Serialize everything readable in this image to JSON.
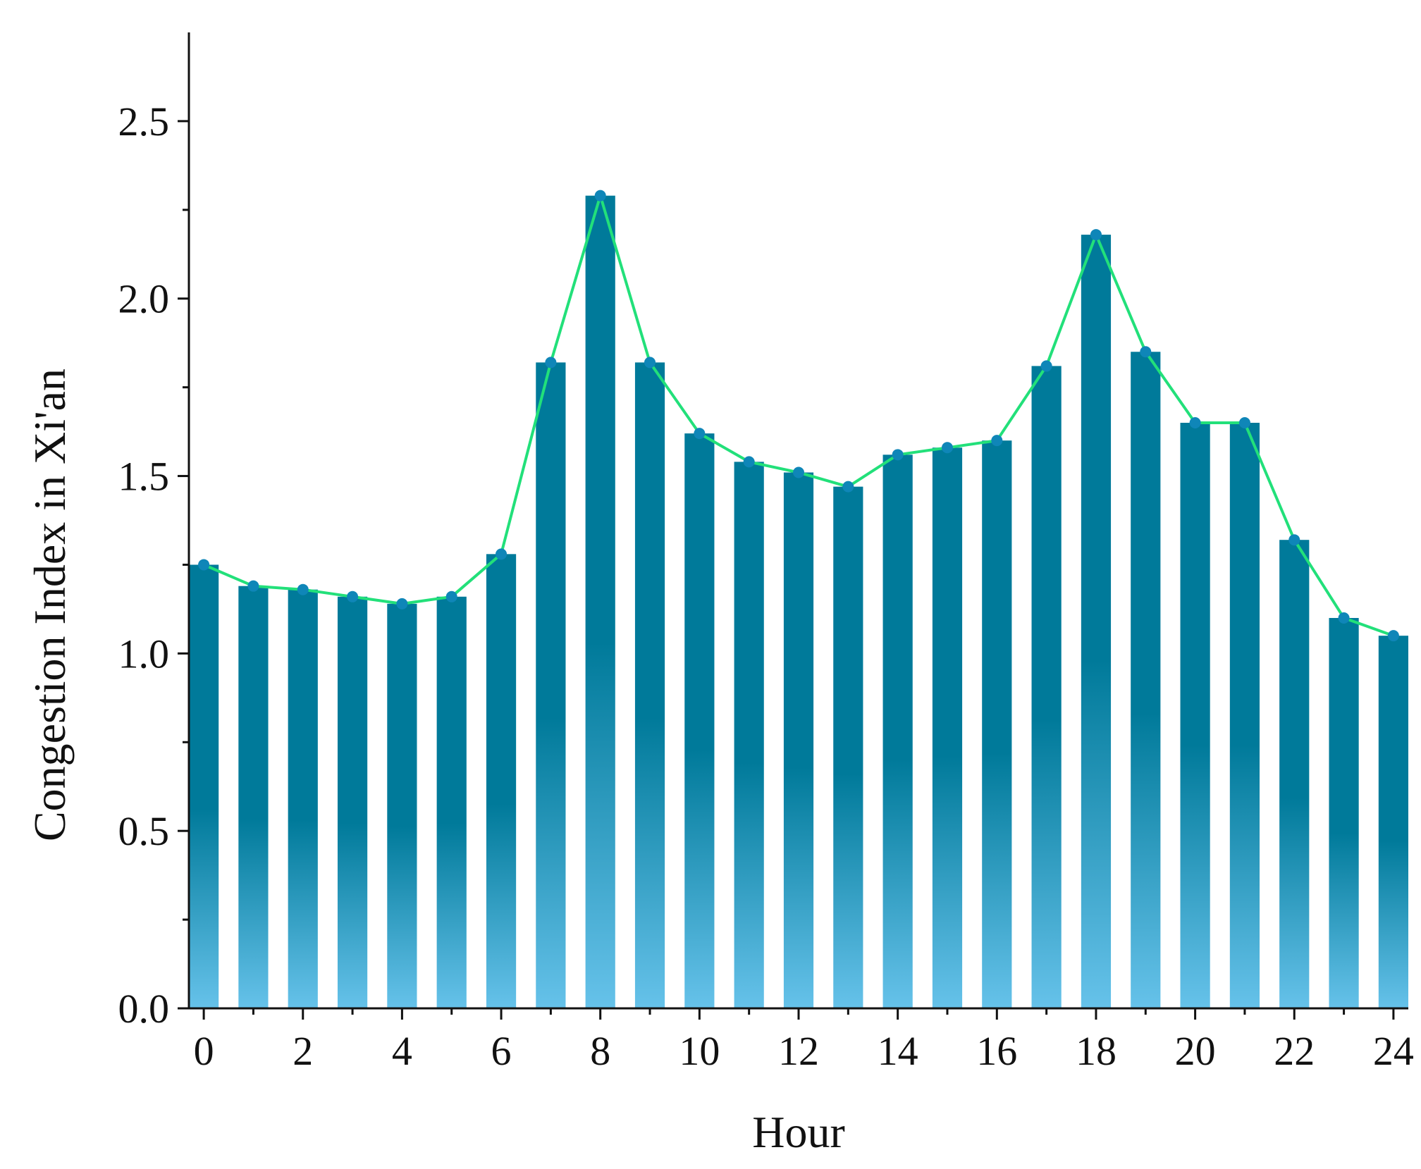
{
  "chart_data": {
    "type": "bar",
    "xlabel": "Hour",
    "ylabel": "Congestion Index in Xi'an",
    "x": [
      0,
      1,
      2,
      3,
      4,
      5,
      6,
      7,
      8,
      9,
      10,
      11,
      12,
      13,
      14,
      15,
      16,
      17,
      18,
      19,
      20,
      21,
      22,
      23,
      24
    ],
    "values": [
      1.25,
      1.19,
      1.18,
      1.16,
      1.14,
      1.16,
      1.28,
      1.82,
      2.29,
      1.82,
      1.62,
      1.54,
      1.51,
      1.47,
      1.56,
      1.58,
      1.6,
      1.81,
      2.18,
      1.85,
      1.65,
      1.65,
      1.32,
      1.1,
      1.05
    ],
    "overlay_line": true,
    "xlim": [
      -0.3,
      24.3
    ],
    "ylim": [
      0,
      2.75
    ],
    "x_ticks": [
      "0",
      "2",
      "4",
      "6",
      "8",
      "10",
      "12",
      "14",
      "16",
      "18",
      "20",
      "22",
      "24"
    ],
    "y_ticks": [
      "0.0",
      "0.5",
      "1.0",
      "1.5",
      "2.0",
      "2.5"
    ],
    "grid": false,
    "legend": "none",
    "colors": {
      "bar_top": "#007a9a",
      "bar_bottom": "#66c2ea",
      "line": "#22e07a",
      "marker": "#0f86b8",
      "axis": "#111111"
    }
  }
}
